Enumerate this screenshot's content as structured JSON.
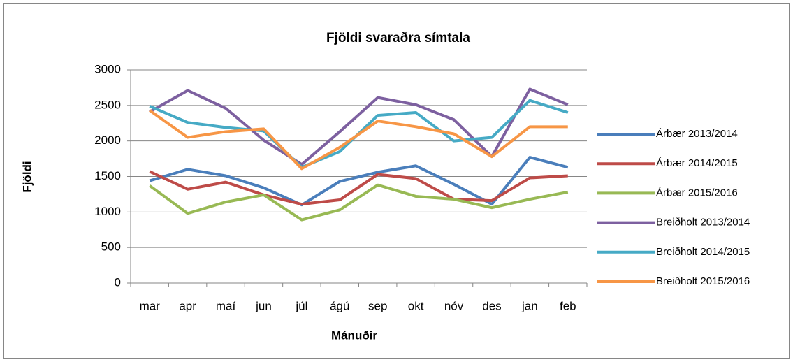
{
  "chart_data": {
    "type": "line",
    "title": "Fjöldi svaraðra símtala",
    "x_label": "Mánuðir",
    "y_label": "Fjöldi",
    "categories": [
      "mar",
      "apr",
      "maí",
      "jun",
      "júl",
      "ágú",
      "sep",
      "okt",
      "nóv",
      "des",
      "jan",
      "feb"
    ],
    "series": [
      {
        "name": "Árbær 2013/2014",
        "color": "#4a7ebb",
        "values": [
          1440,
          1600,
          1510,
          1340,
          1100,
          1430,
          1560,
          1650,
          1390,
          1110,
          1770,
          1630
        ]
      },
      {
        "name": "Árbær 2014/2015",
        "color": "#be4b48",
        "values": [
          1570,
          1320,
          1420,
          1240,
          1110,
          1170,
          1530,
          1470,
          1180,
          1160,
          1480,
          1510
        ]
      },
      {
        "name": "Árbær 2015/2016",
        "color": "#98b954",
        "values": [
          1370,
          980,
          1140,
          1240,
          890,
          1030,
          1380,
          1220,
          1180,
          1060,
          1180,
          1280
        ]
      },
      {
        "name": "Breiðholt 2013/2014",
        "color": "#7d60a0",
        "values": [
          2410,
          2710,
          2460,
          2010,
          1670,
          2130,
          2610,
          2510,
          2300,
          1780,
          2730,
          2510
        ]
      },
      {
        "name": "Breiðholt 2014/2015",
        "color": "#46aac5",
        "values": [
          2490,
          2260,
          2190,
          2140,
          1630,
          1850,
          2360,
          2400,
          2000,
          2050,
          2570,
          2400
        ]
      },
      {
        "name": "Breiðholt 2015/2016",
        "color": "#f79646",
        "values": [
          2430,
          2050,
          2130,
          2170,
          1610,
          1910,
          2280,
          2200,
          2100,
          1780,
          2200,
          2200
        ]
      }
    ],
    "ylim": [
      0,
      3000
    ],
    "yticks": [
      0,
      500,
      1000,
      1500,
      2000,
      2500,
      3000
    ],
    "grid": true,
    "legend": "right"
  }
}
